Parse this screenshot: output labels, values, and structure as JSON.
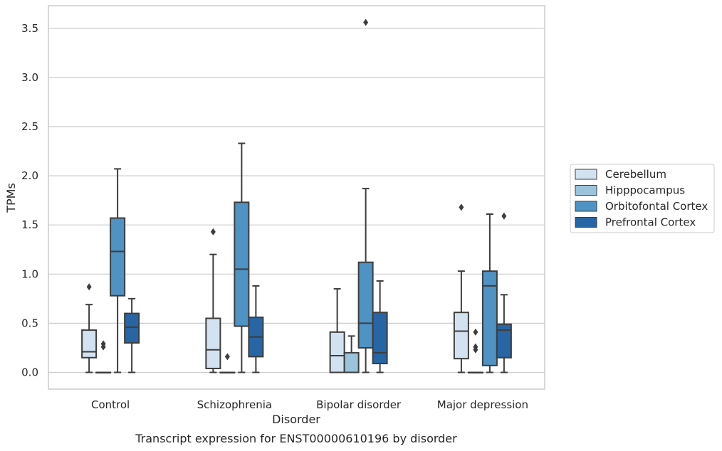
{
  "chart_data": {
    "type": "box",
    "caption": "Transcript expression for ENST00000610196 by disorder",
    "xlabel": "Disorder",
    "ylabel": "TPMs",
    "ylim": [
      -0.17,
      3.73
    ],
    "yticks": [
      "0.0",
      "0.5",
      "1.0",
      "1.5",
      "2.0",
      "2.5",
      "3.0",
      "3.5"
    ],
    "ytick_values": [
      0,
      0.5,
      1.0,
      1.5,
      2.0,
      2.5,
      3.0,
      3.5
    ],
    "grid": "horizontal",
    "legend_position": "right",
    "categories": [
      "Control",
      "Schizophrenia",
      "Bipolar disorder",
      "Major depression"
    ],
    "series": [
      {
        "name": "Cerebellum",
        "color": "#d2e2f0",
        "boxes": [
          {
            "whislo": 0.0,
            "q1": 0.15,
            "med": 0.21,
            "q3": 0.43,
            "whishi": 0.69,
            "fliers": [
              0.87
            ]
          },
          {
            "whislo": 0.0,
            "q1": 0.04,
            "med": 0.23,
            "q3": 0.55,
            "whishi": 1.2,
            "fliers": [
              1.43
            ]
          },
          {
            "whislo": 0.0,
            "q1": 0.0,
            "med": 0.17,
            "q3": 0.41,
            "whishi": 0.85,
            "fliers": []
          },
          {
            "whislo": 0.0,
            "q1": 0.14,
            "med": 0.42,
            "q3": 0.61,
            "whishi": 1.03,
            "fliers": [
              1.68
            ]
          }
        ]
      },
      {
        "name": "Hipppocampus",
        "color": "#9cc3dc",
        "boxes": [
          {
            "whislo": 0.0,
            "q1": 0.0,
            "med": 0.0,
            "q3": 0.0,
            "whishi": 0.0,
            "fliers": [
              0.26,
              0.29
            ]
          },
          {
            "whislo": 0.0,
            "q1": 0.0,
            "med": 0.0,
            "q3": 0.0,
            "whishi": 0.0,
            "fliers": [
              0.16
            ]
          },
          {
            "whislo": 0.0,
            "q1": 0.0,
            "med": 0.0,
            "q3": 0.2,
            "whishi": 0.37,
            "fliers": []
          },
          {
            "whislo": 0.0,
            "q1": 0.0,
            "med": 0.0,
            "q3": 0.0,
            "whishi": 0.0,
            "fliers": [
              0.23,
              0.26,
              0.41
            ]
          }
        ]
      },
      {
        "name": "Orbitofontal Cortex",
        "color": "#4f92c4",
        "boxes": [
          {
            "whislo": 0.0,
            "q1": 0.78,
            "med": 1.23,
            "q3": 1.57,
            "whishi": 2.07,
            "fliers": []
          },
          {
            "whislo": 0.0,
            "q1": 0.47,
            "med": 1.05,
            "q3": 1.73,
            "whishi": 2.33,
            "fliers": []
          },
          {
            "whislo": 0.0,
            "q1": 0.25,
            "med": 0.5,
            "q3": 1.12,
            "whishi": 1.87,
            "fliers": [
              3.56
            ]
          },
          {
            "whislo": 0.0,
            "q1": 0.07,
            "med": 0.88,
            "q3": 1.03,
            "whishi": 1.61,
            "fliers": []
          }
        ]
      },
      {
        "name": "Prefrontal Cortex",
        "color": "#2865a5",
        "boxes": [
          {
            "whislo": 0.0,
            "q1": 0.3,
            "med": 0.46,
            "q3": 0.6,
            "whishi": 0.75,
            "fliers": []
          },
          {
            "whislo": 0.0,
            "q1": 0.16,
            "med": 0.36,
            "q3": 0.56,
            "whishi": 0.88,
            "fliers": []
          },
          {
            "whislo": 0.0,
            "q1": 0.09,
            "med": 0.2,
            "q3": 0.61,
            "whishi": 0.93,
            "fliers": []
          },
          {
            "whislo": 0.0,
            "q1": 0.15,
            "med": 0.43,
            "q3": 0.49,
            "whishi": 0.79,
            "fliers": [
              1.59
            ]
          }
        ]
      }
    ]
  }
}
